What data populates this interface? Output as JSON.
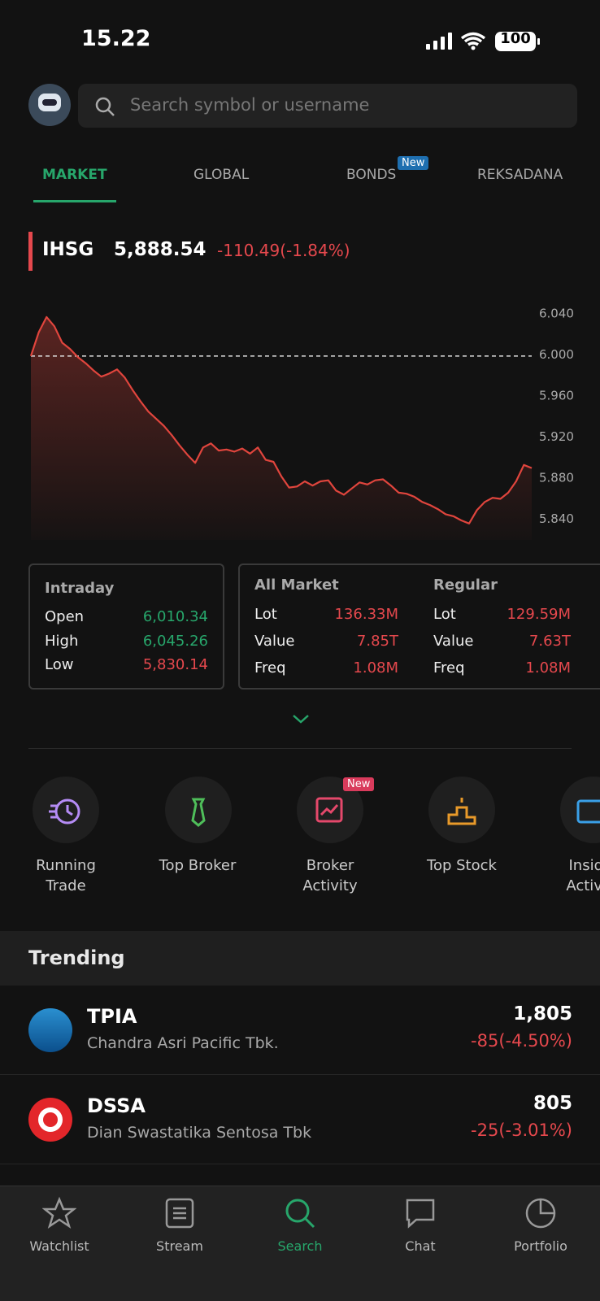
{
  "status_bar": {
    "time": "15.22",
    "battery": "100"
  },
  "search": {
    "placeholder": "Search symbol or username"
  },
  "tabs": {
    "items": [
      "MARKET",
      "GLOBAL",
      "BONDS",
      "REKSADANA"
    ],
    "badge": "New"
  },
  "index": {
    "name": "IHSG",
    "value": "5,888.54",
    "change": "-110.49(-1.84%)"
  },
  "chart_data": {
    "type": "line",
    "color": "#e0453d",
    "grid": false,
    "values": [
      5999,
      6022,
      6037,
      6028,
      6012,
      6006,
      5998,
      5992,
      5985,
      5979,
      5982,
      5986,
      5978,
      5966,
      5955,
      5945,
      5938,
      5931,
      5922,
      5912,
      5903,
      5895,
      5910,
      5914,
      5907,
      5908,
      5906,
      5909,
      5904,
      5910,
      5898,
      5896,
      5882,
      5871,
      5872,
      5877,
      5873,
      5877,
      5878,
      5868,
      5864,
      5870,
      5876,
      5874,
      5878,
      5879,
      5873,
      5866,
      5865,
      5862,
      5857,
      5854,
      5850,
      5845,
      5843,
      5839,
      5836,
      5849,
      5857,
      5861,
      5860,
      5866,
      5877,
      5893,
      5890
    ],
    "previous_close": 5999.03,
    "ylim": [
      5820,
      6048
    ],
    "yticks": [
      {
        "value": 6040,
        "label": "6.040"
      },
      {
        "value": 6000,
        "label": "6.000"
      },
      {
        "value": 5960,
        "label": "5.960"
      },
      {
        "value": 5920,
        "label": "5.920"
      },
      {
        "value": 5880,
        "label": "5.880"
      },
      {
        "value": 5840,
        "label": "5.840"
      }
    ]
  },
  "intraday": {
    "title": "Intraday",
    "rows": [
      [
        "Open",
        "6,010.34"
      ],
      [
        "High",
        "6,045.26"
      ],
      [
        "Low",
        "5,830.14"
      ]
    ]
  },
  "all_market": {
    "title": "All Market",
    "rows": [
      [
        "Lot",
        "136.33M"
      ],
      [
        "Value",
        "7.85T"
      ],
      [
        "Freq",
        "1.08M"
      ]
    ]
  },
  "regular": {
    "title": "Regular",
    "rows": [
      [
        "Lot",
        "129.59M"
      ],
      [
        "Value",
        "7.63T"
      ],
      [
        "Freq",
        "1.08M"
      ]
    ]
  },
  "shortcuts": {
    "items": [
      [
        "Running",
        "Trade"
      ],
      [
        "Top Broker"
      ],
      [
        "Broker",
        "Activity"
      ],
      [
        "Top Stock"
      ],
      [
        "Insider",
        "Activity"
      ]
    ],
    "badge": "New"
  },
  "trending": {
    "title": "Trending",
    "items": [
      {
        "symbol": "TPIA",
        "name": "Chandra Asri Pacific Tbk.",
        "price": "1,805",
        "change": "-85(-4.50%)"
      },
      {
        "symbol": "DSSA",
        "name": "Dian Swastatika Sentosa Tbk",
        "price": "805",
        "change": "-25(-3.01%)"
      }
    ]
  },
  "nav": {
    "items": [
      "Watchlist",
      "Stream",
      "Search",
      "Chat",
      "Portfolio"
    ]
  }
}
